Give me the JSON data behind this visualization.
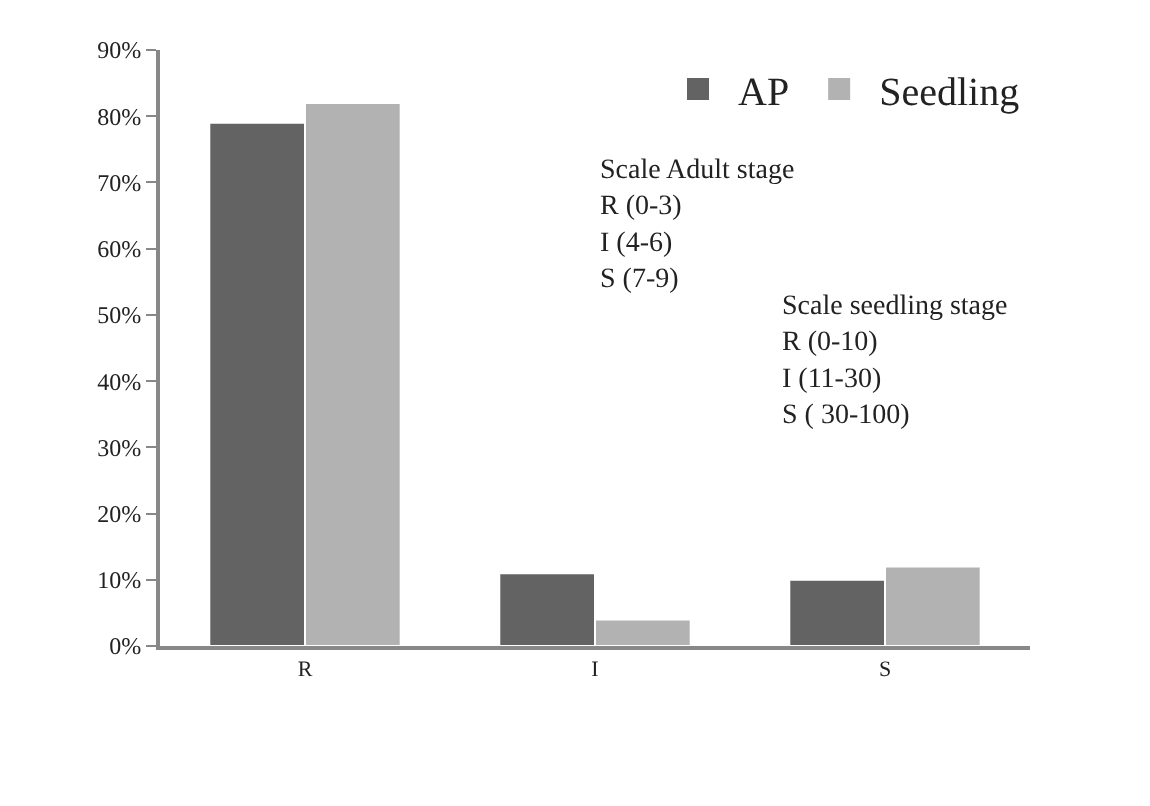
{
  "chart_data": {
    "type": "bar",
    "categories": [
      "R",
      "I",
      "S"
    ],
    "series": [
      {
        "name": "AP",
        "color": "#636363",
        "values": [
          79,
          11,
          10
        ]
      },
      {
        "name": "Seedling",
        "color": "#b2b2b2",
        "values": [
          82,
          4,
          12
        ]
      }
    ],
    "ylim": [
      0,
      90
    ],
    "yticks": [
      {
        "value": 0,
        "label": "0%"
      },
      {
        "value": 10,
        "label": "10%"
      },
      {
        "value": 20,
        "label": "20%"
      },
      {
        "value": 30,
        "label": "30%"
      },
      {
        "value": 40,
        "label": "40%"
      },
      {
        "value": 50,
        "label": "50%"
      },
      {
        "value": 60,
        "label": "60%"
      },
      {
        "value": 70,
        "label": "70%"
      },
      {
        "value": 80,
        "label": "80%"
      },
      {
        "value": 90,
        "label": "90%"
      }
    ],
    "legend": "top right",
    "annotations": [
      "Scale Adult stage\nR (0-3)\nI (4-6)\nS (7-9)",
      "Scale seedling stage\nR (0-10)\nI (11-30)\nS ( 30-100)"
    ]
  }
}
